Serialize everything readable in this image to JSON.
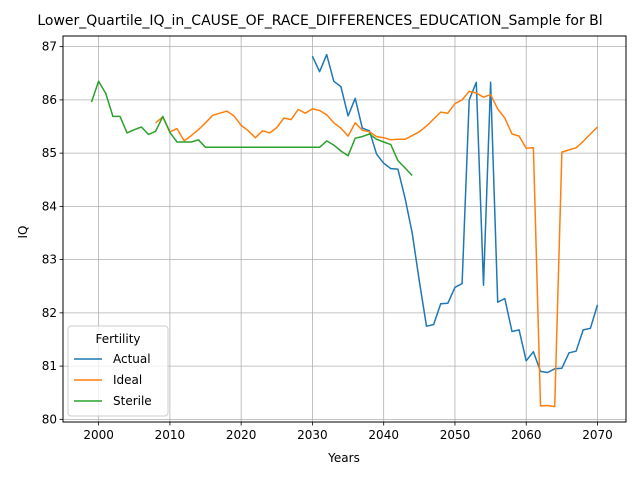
{
  "chart_data": {
    "type": "line",
    "title": "Lower_Quartile_IQ_in_CAUSE_OF_RACE_DIFFERENCES_EDUCATION_Sample for Bl",
    "xlabel": "Years",
    "ylabel": "IQ",
    "xlim": [
      1995,
      2074
    ],
    "ylim": [
      79.95,
      87.2
    ],
    "xticks": [
      2000,
      2010,
      2020,
      2030,
      2040,
      2050,
      2060,
      2070
    ],
    "yticks": [
      80,
      81,
      82,
      83,
      84,
      85,
      86,
      87
    ],
    "grid": true,
    "legend": {
      "title": "Fertility",
      "placement": "lower-left"
    },
    "series": [
      {
        "name": "Actual",
        "color": "#1f77b4",
        "x": [
          2030,
          2031,
          2032,
          2033,
          2034,
          2035,
          2036,
          2037,
          2038,
          2039,
          2040,
          2041,
          2042,
          2043,
          2044,
          2045,
          2046,
          2047,
          2048,
          2049,
          2050,
          2051,
          2052,
          2053,
          2054,
          2055,
          2056,
          2057,
          2058,
          2059,
          2060,
          2061,
          2062,
          2063,
          2064,
          2065,
          2066,
          2067,
          2068,
          2069,
          2070
        ],
        "y": [
          86.82,
          86.53,
          86.85,
          86.35,
          86.25,
          85.7,
          86.03,
          85.47,
          85.42,
          84.98,
          84.81,
          84.71,
          84.7,
          84.15,
          83.5,
          82.6,
          81.75,
          81.78,
          82.17,
          82.18,
          82.48,
          82.55,
          86.0,
          86.33,
          82.52,
          86.33,
          82.2,
          82.27,
          81.65,
          81.68,
          81.1,
          81.27,
          80.9,
          80.88,
          80.95,
          80.96,
          81.25,
          81.28,
          81.68,
          81.71,
          82.15
        ]
      },
      {
        "name": "Ideal",
        "color": "#ff7f0e",
        "x": [
          2008,
          2009,
          2010,
          2011,
          2012,
          2013,
          2014,
          2015,
          2016,
          2017,
          2018,
          2019,
          2020,
          2021,
          2022,
          2023,
          2024,
          2025,
          2026,
          2027,
          2028,
          2029,
          2030,
          2031,
          2032,
          2033,
          2034,
          2035,
          2036,
          2037,
          2038,
          2039,
          2040,
          2041,
          2042,
          2043,
          2044,
          2045,
          2046,
          2047,
          2048,
          2049,
          2050,
          2051,
          2052,
          2053,
          2054,
          2055,
          2056,
          2057,
          2058,
          2059,
          2060,
          2061,
          2062,
          2063,
          2064,
          2065,
          2066,
          2067,
          2068,
          2069,
          2070
        ],
        "y": [
          85.57,
          85.68,
          85.4,
          85.46,
          85.23,
          85.33,
          85.44,
          85.57,
          85.71,
          85.75,
          85.79,
          85.7,
          85.52,
          85.42,
          85.29,
          85.42,
          85.38,
          85.48,
          85.66,
          85.63,
          85.82,
          85.75,
          85.83,
          85.8,
          85.72,
          85.57,
          85.47,
          85.32,
          85.57,
          85.43,
          85.4,
          85.31,
          85.29,
          85.25,
          85.26,
          85.26,
          85.33,
          85.4,
          85.51,
          85.64,
          85.77,
          85.75,
          85.93,
          86.0,
          86.16,
          86.13,
          86.05,
          86.1,
          85.83,
          85.66,
          85.36,
          85.32,
          85.09,
          85.1,
          80.25,
          80.26,
          80.24,
          85.02,
          85.06,
          85.1,
          85.22,
          85.36,
          85.49
        ]
      },
      {
        "name": "Sterile",
        "color": "#2ca02c",
        "x": [
          1999,
          2000,
          2001,
          2002,
          2003,
          2004,
          2005,
          2006,
          2007,
          2008,
          2009,
          2010,
          2011,
          2012,
          2013,
          2014,
          2015,
          2016,
          2017,
          2018,
          2019,
          2020,
          2021,
          2022,
          2023,
          2024,
          2025,
          2026,
          2027,
          2028,
          2029,
          2030,
          2031,
          2032,
          2033,
          2034,
          2035,
          2036,
          2037,
          2038,
          2039,
          2040,
          2041,
          2042,
          2043,
          2044
        ],
        "y": [
          85.96,
          86.35,
          86.12,
          85.69,
          85.69,
          85.38,
          85.44,
          85.49,
          85.35,
          85.41,
          85.69,
          85.39,
          85.21,
          85.21,
          85.21,
          85.25,
          85.11,
          85.11,
          85.11,
          85.11,
          85.11,
          85.11,
          85.11,
          85.11,
          85.11,
          85.11,
          85.11,
          85.11,
          85.11,
          85.11,
          85.11,
          85.11,
          85.11,
          85.23,
          85.15,
          85.04,
          84.95,
          85.28,
          85.31,
          85.36,
          85.26,
          85.21,
          85.16,
          84.86,
          84.72,
          84.58
        ]
      }
    ]
  }
}
